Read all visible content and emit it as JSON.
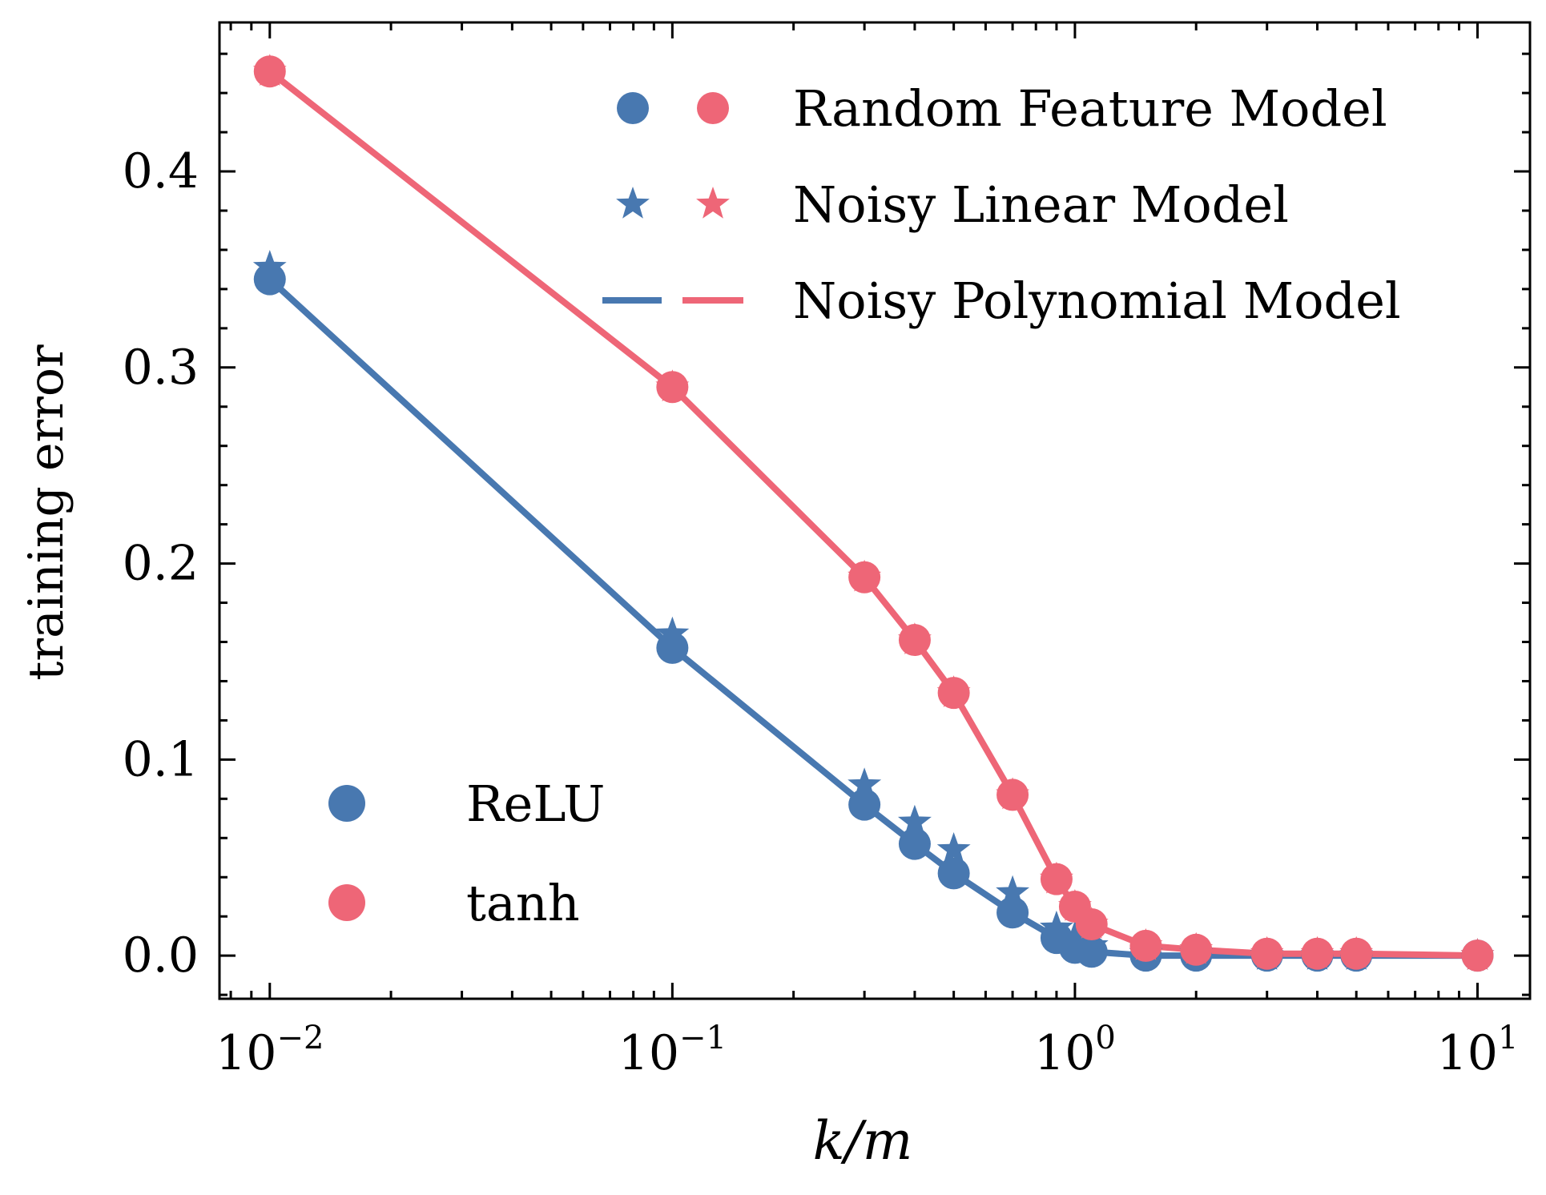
{
  "chart_data": {
    "type": "line",
    "xscale": "log",
    "xlim": [
      0.0075,
      13.5
    ],
    "ylim": [
      -0.022,
      0.476
    ],
    "xlabel": "k/m",
    "ylabel": "training error",
    "x_ticks": [
      {
        "value": 0.01,
        "base": "10",
        "exp": "−2"
      },
      {
        "value": 0.1,
        "base": "10",
        "exp": "−1"
      },
      {
        "value": 1,
        "base": "10",
        "exp": "0"
      },
      {
        "value": 10,
        "base": "10",
        "exp": "1"
      }
    ],
    "y_ticks": [
      {
        "value": 0.0,
        "label": "0.0"
      },
      {
        "value": 0.1,
        "label": "0.1"
      },
      {
        "value": 0.2,
        "label": "0.2"
      },
      {
        "value": 0.3,
        "label": "0.3"
      },
      {
        "value": 0.4,
        "label": "0.4"
      }
    ],
    "x": [
      0.01,
      0.1,
      0.3,
      0.4,
      0.5,
      0.7,
      0.9,
      1.0,
      1.1,
      1.5,
      2.0,
      3.0,
      4.0,
      5.0,
      10.0
    ],
    "series": [
      {
        "name": "ReLU",
        "color": "#4878b0",
        "random_feature_model": [
          0.345,
          0.157,
          0.077,
          0.057,
          0.042,
          0.022,
          0.009,
          0.004,
          0.002,
          0.0,
          0.0,
          0.0,
          0.0,
          0.0,
          0.0
        ],
        "noisy_linear_model": [
          0.351,
          0.164,
          0.087,
          0.068,
          0.054,
          0.032,
          0.014,
          0.009,
          0.005,
          0.001,
          0.001,
          0.0,
          0.0,
          0.0,
          0.0
        ],
        "noisy_polynomial_model": [
          0.345,
          0.157,
          0.077,
          0.057,
          0.042,
          0.022,
          0.009,
          0.004,
          0.002,
          0.0,
          0.0,
          0.0,
          0.0,
          0.0,
          0.0
        ]
      },
      {
        "name": "tanh",
        "color": "#ee6677",
        "random_feature_model": [
          0.451,
          0.29,
          0.193,
          0.161,
          0.134,
          0.082,
          0.039,
          0.025,
          0.016,
          0.005,
          0.003,
          0.001,
          0.001,
          0.001,
          0.0
        ],
        "noisy_linear_model": [
          0.451,
          0.29,
          0.193,
          0.161,
          0.134,
          0.082,
          0.039,
          0.025,
          0.016,
          0.005,
          0.003,
          0.001,
          0.001,
          0.001,
          0.0
        ],
        "noisy_polynomial_model": [
          0.451,
          0.29,
          0.193,
          0.161,
          0.134,
          0.082,
          0.039,
          0.025,
          0.016,
          0.005,
          0.003,
          0.001,
          0.001,
          0.001,
          0.0
        ]
      }
    ],
    "legend_models": {
      "placement": "top-right",
      "entries": [
        "Random Feature Model",
        "Noisy Linear Model",
        "Noisy Polynomial Model"
      ]
    },
    "legend_activations": {
      "placement": "bottom-left",
      "entries": [
        "ReLU",
        "tanh"
      ]
    }
  }
}
